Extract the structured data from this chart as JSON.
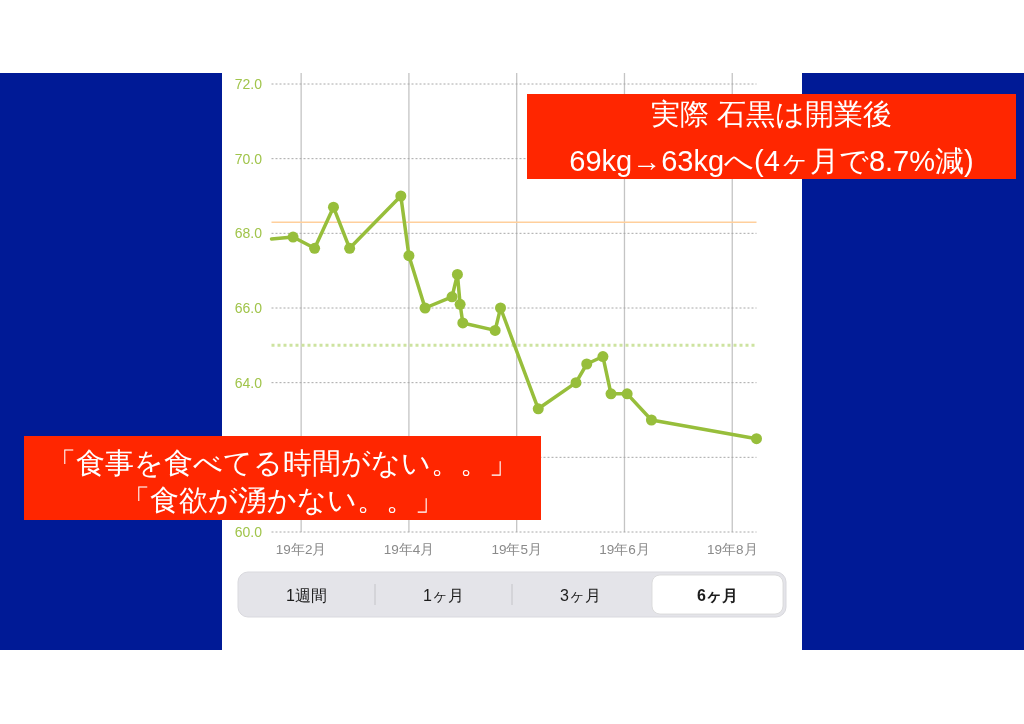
{
  "chart_data": {
    "type": "line",
    "title": "実際 石黒は開業後",
    "subtitle": "69kg→63kgへ(4ヶ月で8.7%減)",
    "annotations": [
      "「食事を食べてる時間がない。。」",
      "「食欲が湧かない。。」",
      "1週間",
      "1ヶ月",
      "3ヶ月",
      "6ヶ月"
    ],
    "xlim": [
      "--02-13",
      "--08-12"
    ],
    "xticks": [
      {
        "value": "--02-24",
        "label": "19年2月"
      },
      {
        "value": "--04-05",
        "label": "19年4月"
      },
      {
        "value": "--05-15",
        "label": "19年5月"
      },
      {
        "value": "--06-24",
        "label": "19年6月"
      },
      {
        "value": "--08-03",
        "label": "19年8月"
      }
    ],
    "ylim": [
      60,
      72
    ],
    "yticks": [
      {
        "value": 60,
        "label": "60.0"
      },
      {
        "value": 62,
        "label": null
      },
      {
        "value": 64,
        "label": "64.0"
      },
      {
        "value": 66,
        "label": "66.0"
      },
      {
        "value": 68,
        "label": "68.0"
      },
      {
        "value": 70,
        "label": "70.0"
      },
      {
        "value": 72,
        "label": "72.0"
      }
    ],
    "grid": true,
    "line_style": "solid",
    "ref_lines": [
      {
        "axis": "y",
        "value": 68.3,
        "color": "#ffcf9c",
        "line_style": "solid"
      },
      {
        "axis": "y",
        "value": 65.0,
        "color": "#cde3a0",
        "line_style": "dotted"
      }
    ],
    "series": [
      {
        "color": "#97be3b",
        "x": [
          "--02-13",
          "--02-21"
        ],
        "values": [
          67.85,
          67.9
        ]
      },
      {
        "color": "#97be3b",
        "marker": "circle",
        "x": [
          "--02-21",
          "--03-01",
          "--03-08",
          "--03-14",
          "--04-02",
          "--04-05",
          "--04-11",
          "--04-21",
          "--04-23",
          "--04-24",
          "--04-25",
          "--05-07",
          "--05-09",
          "--05-23",
          "--06-06",
          "--06-10",
          "--06-16",
          "--06-19",
          "--06-25",
          "--07-04",
          "--08-12"
        ],
        "values": [
          67.9,
          67.6,
          68.7,
          67.6,
          69.0,
          67.4,
          66.0,
          66.3,
          66.9,
          66.1,
          65.6,
          65.4,
          66.0,
          63.3,
          64.0,
          64.5,
          64.7,
          63.7,
          63.7,
          63.0,
          62.5
        ]
      }
    ]
  }
}
